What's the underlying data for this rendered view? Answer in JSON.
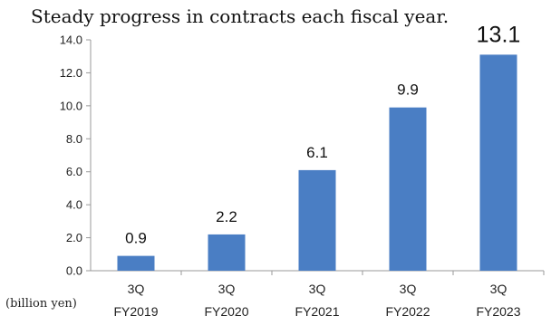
{
  "chart_data": {
    "type": "bar",
    "title": "Steady progress in contracts each fiscal year.",
    "unit_label": "(billion yen)",
    "categories": [
      [
        "3Q",
        "FY2019"
      ],
      [
        "3Q",
        "FY2020"
      ],
      [
        "3Q",
        "FY2021"
      ],
      [
        "3Q",
        "FY2022"
      ],
      [
        "3Q",
        "FY2023"
      ]
    ],
    "values": [
      0.9,
      2.2,
      6.1,
      9.9,
      13.1
    ],
    "value_labels": [
      "0.9",
      "2.2",
      "6.1",
      "9.9",
      "13.1"
    ],
    "yticks": [
      "0.0",
      "2.0",
      "4.0",
      "6.0",
      "8.0",
      "10.0",
      "12.0",
      "14.0"
    ],
    "ylim": [
      0,
      14
    ],
    "grid": false,
    "bar_color": "#4a7ec4",
    "axis_color": "#999999"
  }
}
